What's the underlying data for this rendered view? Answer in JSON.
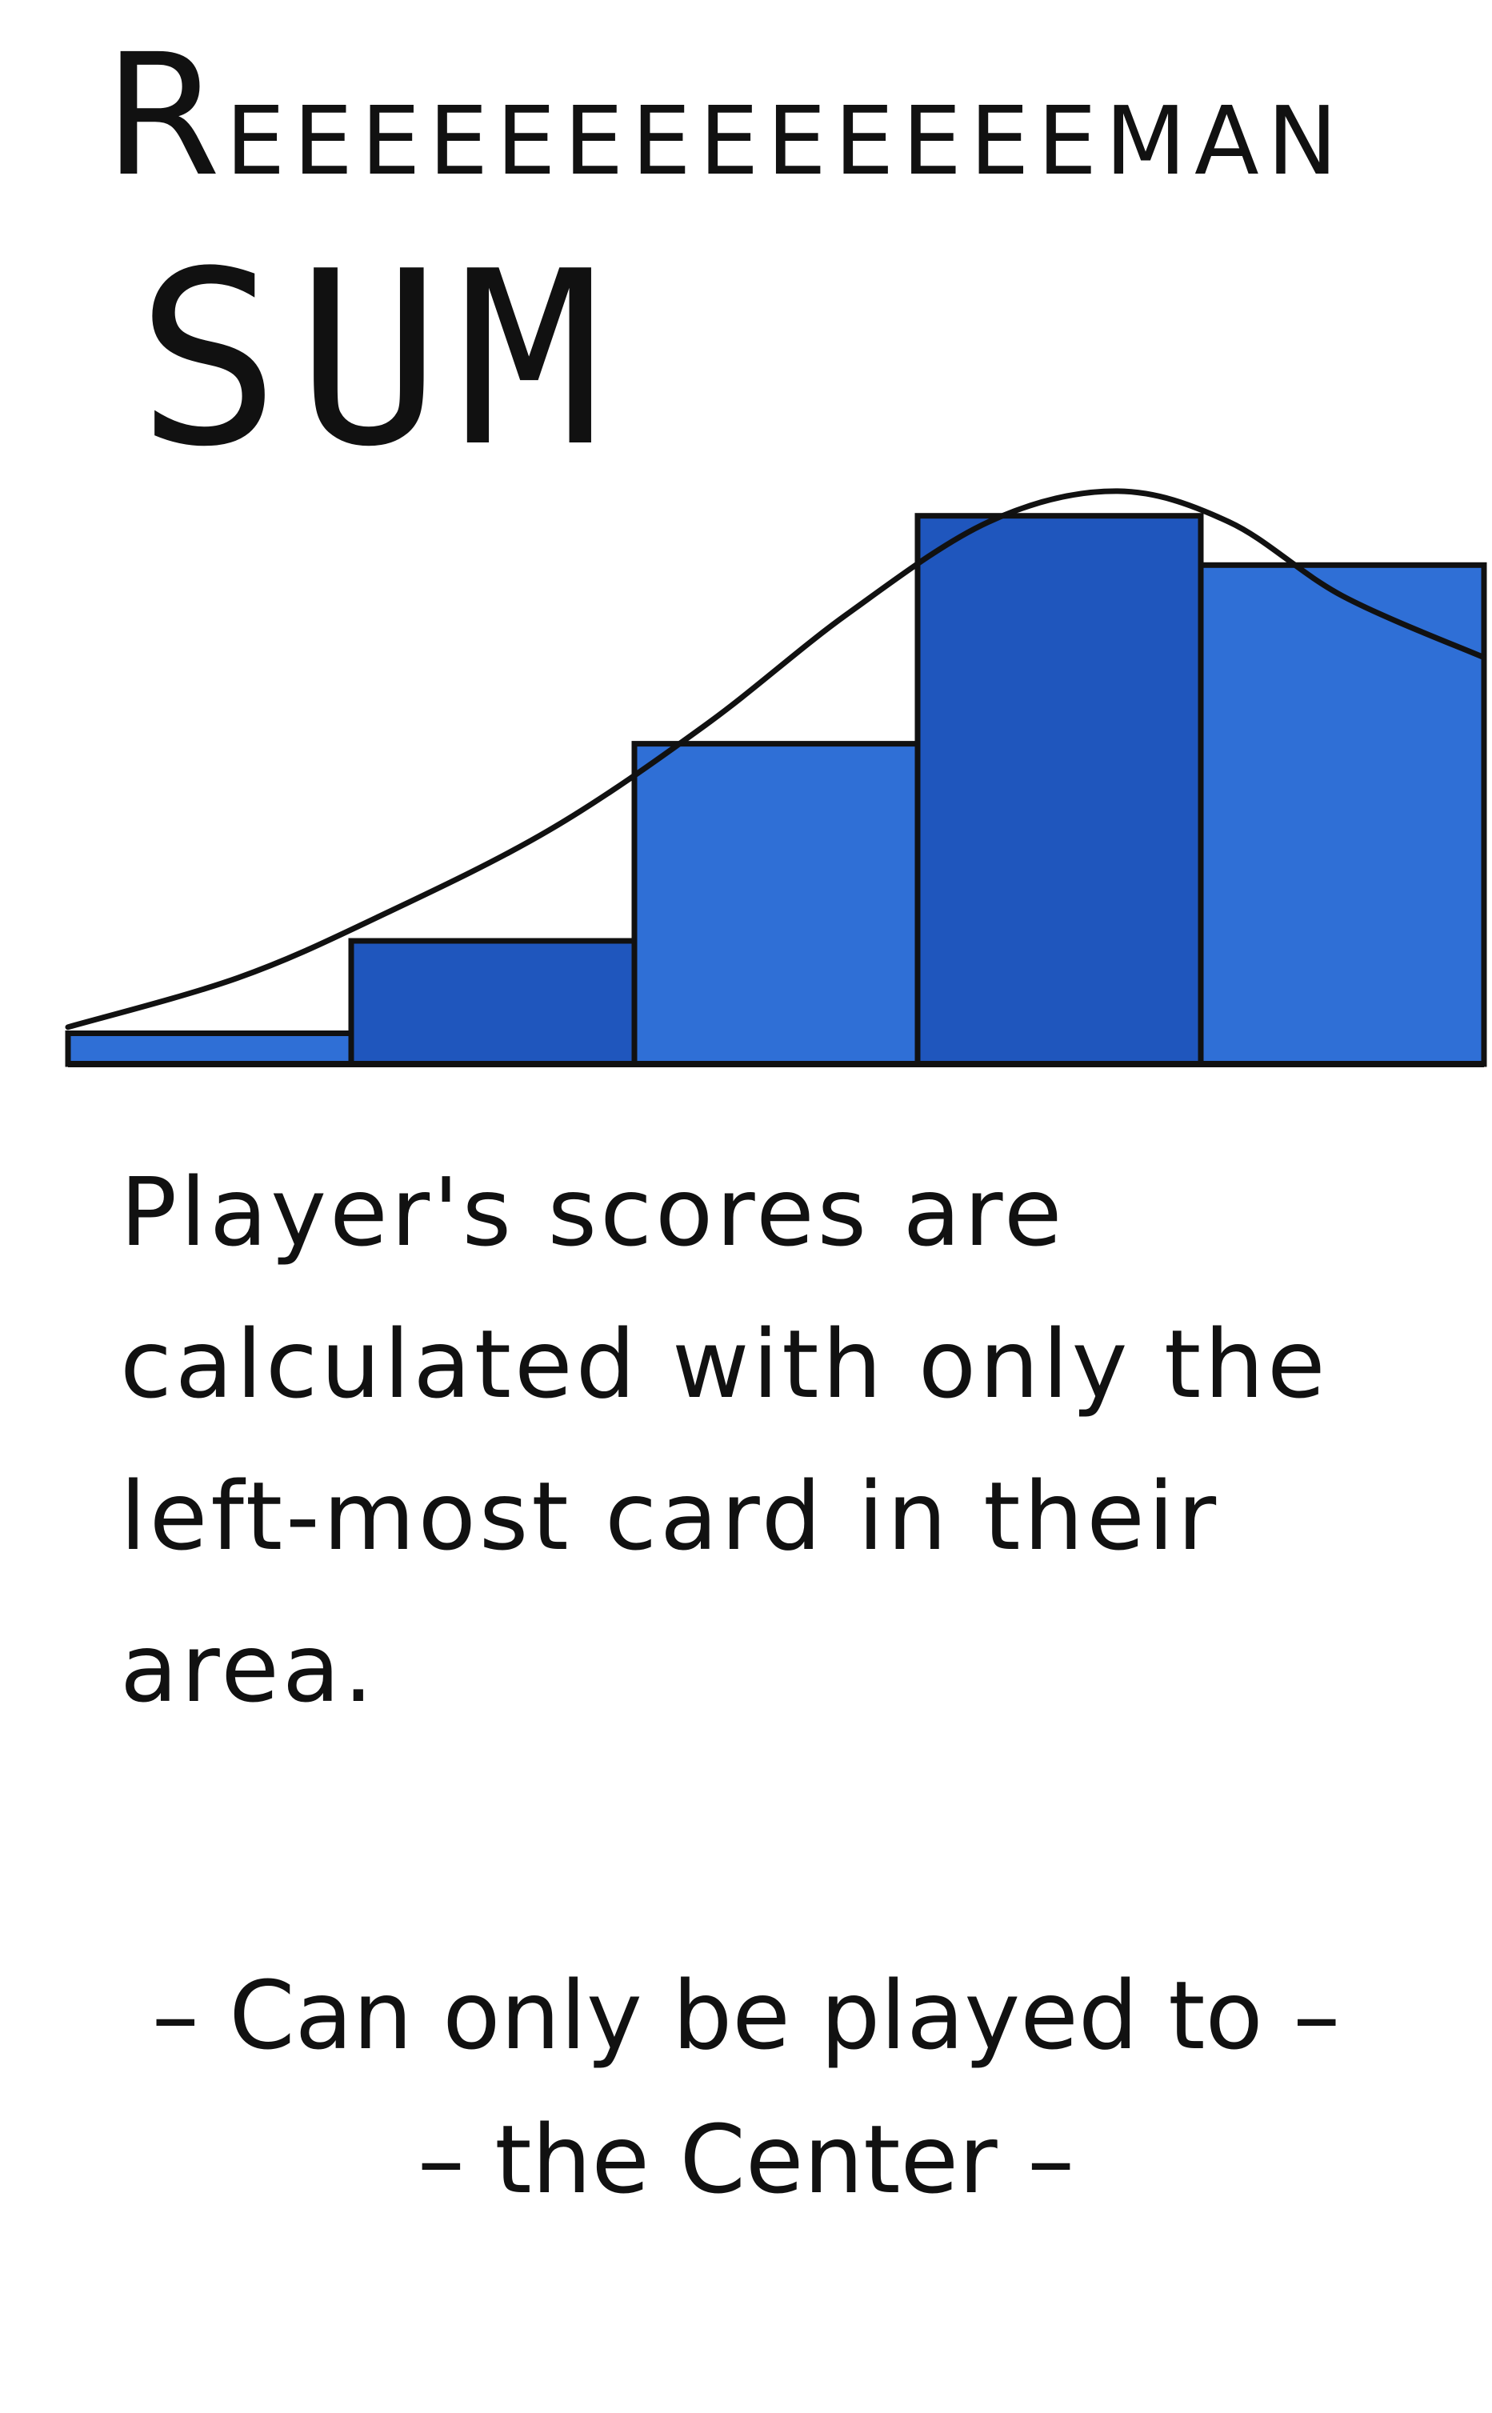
{
  "card": {
    "title_initial": "R",
    "title_rest": "EEEEEEEEEEEEEMAN",
    "subtitle": "SUM",
    "description": "Player's scores are calculated with only the left-most card in their area.",
    "rule_line_1": "– Can only be played to –",
    "rule_line_2": "– the Center –"
  },
  "colors": {
    "bar_fill": "#2f6fd6",
    "bar_fill_dark": "#1f56bd",
    "ink": "#111111"
  },
  "chart_data": {
    "type": "bar",
    "description_role": "riemann-sum-illustration",
    "bar_heights": [
      0.05,
      0.2,
      0.52,
      0.89,
      0.81
    ],
    "curve": [
      [
        0.0,
        0.06
      ],
      [
        0.12,
        0.14
      ],
      [
        0.22,
        0.24
      ],
      [
        0.34,
        0.38
      ],
      [
        0.45,
        0.55
      ],
      [
        0.55,
        0.73
      ],
      [
        0.65,
        0.88
      ],
      [
        0.74,
        0.93
      ],
      [
        0.82,
        0.88
      ],
      [
        0.9,
        0.76
      ],
      [
        1.0,
        0.66
      ]
    ]
  }
}
